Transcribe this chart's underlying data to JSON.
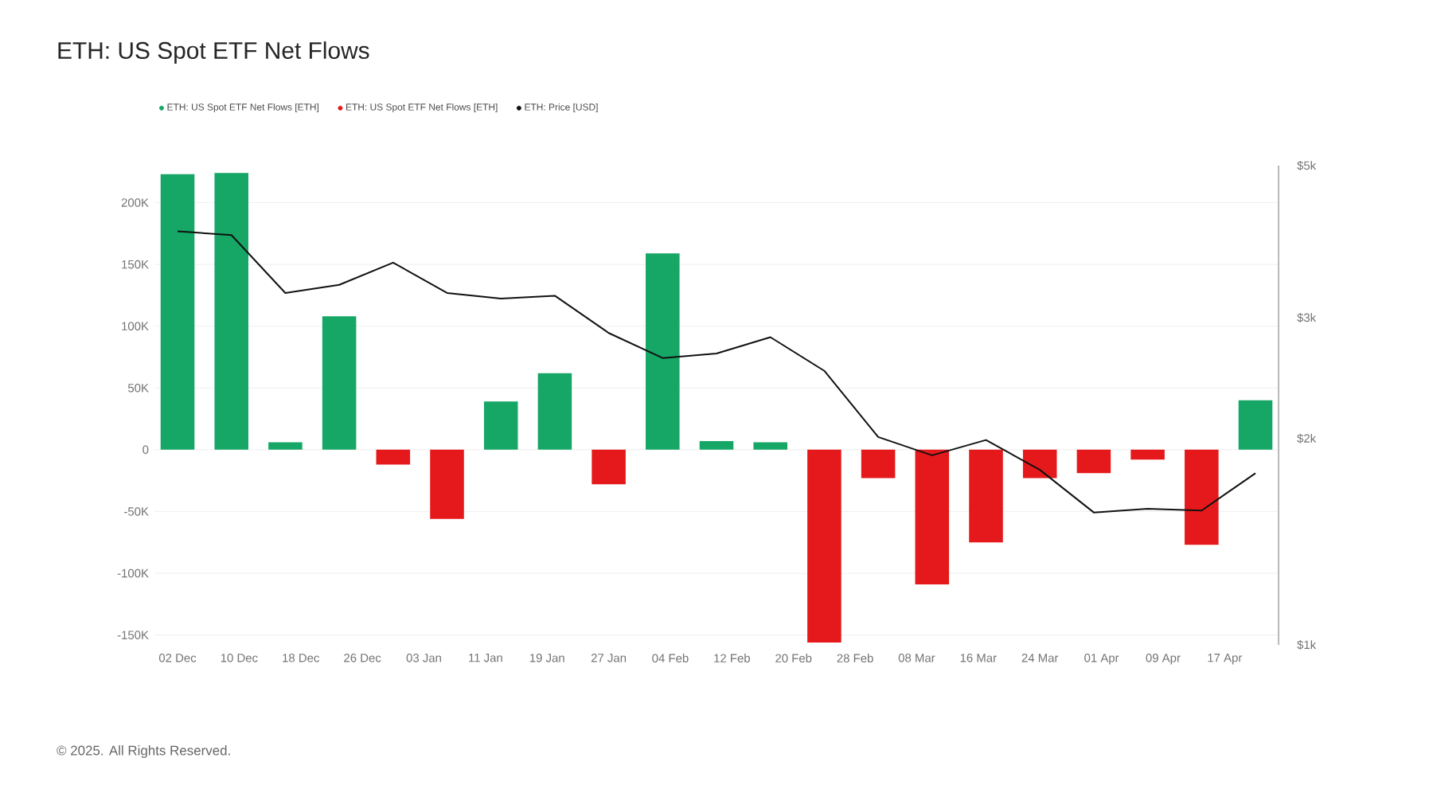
{
  "chart_data": {
    "type": "bar",
    "title": "ETH: US Spot ETF Net Flows",
    "x": [
      "2024-12-02",
      "2024-12-09",
      "2024-12-16",
      "2024-12-23",
      "2024-12-30",
      "2025-01-06",
      "2025-01-13",
      "2025-01-20",
      "2025-01-27",
      "2025-02-03",
      "2025-02-10",
      "2025-02-17",
      "2025-02-24",
      "2025-03-03",
      "2025-03-10",
      "2025-03-17",
      "2025-03-24",
      "2025-03-31",
      "2025-04-07",
      "2025-04-14",
      "2025-04-21"
    ],
    "series": [
      {
        "name": "ETH: US Spot ETF Net Flows [ETH]",
        "color": "#16a766",
        "values": [
          223000,
          224000,
          6000,
          108000,
          null,
          null,
          39000,
          62000,
          null,
          159000,
          7000,
          6000,
          null,
          null,
          null,
          null,
          null,
          null,
          null,
          null,
          40000
        ]
      },
      {
        "name": "ETH: US Spot ETF Net Flows [ETH]",
        "color": "#e5191b",
        "values": [
          null,
          null,
          null,
          null,
          -12000,
          -56000,
          null,
          null,
          -28000,
          null,
          null,
          null,
          -156000,
          -23000,
          -109000,
          -75000,
          -23000,
          -19000,
          -8000,
          -77000,
          null
        ]
      },
      {
        "name": "ETH: Price [USD]",
        "type": "line",
        "axis": "y2",
        "color": "#111111",
        "values": [
          4010,
          3960,
          3260,
          3350,
          3610,
          3260,
          3200,
          3230,
          2850,
          2620,
          2660,
          2810,
          2510,
          2010,
          1890,
          1990,
          1800,
          1560,
          1580,
          1570,
          1780
        ]
      }
    ],
    "xlim": [
      "2024-11-29",
      "2025-04-24"
    ],
    "xticks": [
      {
        "value": "2024-12-02",
        "label": "02 Dec"
      },
      {
        "value": "2024-12-10",
        "label": "10 Dec"
      },
      {
        "value": "2024-12-18",
        "label": "18 Dec"
      },
      {
        "value": "2024-12-26",
        "label": "26 Dec"
      },
      {
        "value": "2025-01-03",
        "label": "03 Jan"
      },
      {
        "value": "2025-01-11",
        "label": "11 Jan"
      },
      {
        "value": "2025-01-19",
        "label": "19 Jan"
      },
      {
        "value": "2025-01-27",
        "label": "27 Jan"
      },
      {
        "value": "2025-02-04",
        "label": "04 Feb"
      },
      {
        "value": "2025-02-12",
        "label": "12 Feb"
      },
      {
        "value": "2025-02-20",
        "label": "20 Feb"
      },
      {
        "value": "2025-02-28",
        "label": "28 Feb"
      },
      {
        "value": "2025-03-08",
        "label": "08 Mar"
      },
      {
        "value": "2025-03-16",
        "label": "16 Mar"
      },
      {
        "value": "2025-03-24",
        "label": "24 Mar"
      },
      {
        "value": "2025-04-01",
        "label": "01 Apr"
      },
      {
        "value": "2025-04-09",
        "label": "09 Apr"
      },
      {
        "value": "2025-04-17",
        "label": "17 Apr"
      }
    ],
    "ylim": [
      -158000,
      230000
    ],
    "yticks": [
      {
        "value": -150000,
        "label": "-150K"
      },
      {
        "value": -100000,
        "label": "-100K"
      },
      {
        "value": -50000,
        "label": "-50K"
      },
      0,
      {
        "value": 50000,
        "label": "50K"
      },
      {
        "value": 100000,
        "label": "100K"
      },
      {
        "value": 150000,
        "label": "150K"
      },
      {
        "value": 200000,
        "label": "200K"
      }
    ],
    "y2lim": [
      1000,
      5000
    ],
    "y2ticks": [
      {
        "value": 1000,
        "label": "$1k"
      },
      {
        "value": 2000,
        "label": "$2k"
      },
      {
        "value": 3000,
        "label": "$3k"
      },
      {
        "value": 5000,
        "label": "$5k"
      }
    ],
    "log": "y2",
    "grid": "y",
    "legend": "top left",
    "marker": "none",
    "line_style": "solid",
    "annotations": [
      "© 2025. All Rights Reserved."
    ]
  }
}
